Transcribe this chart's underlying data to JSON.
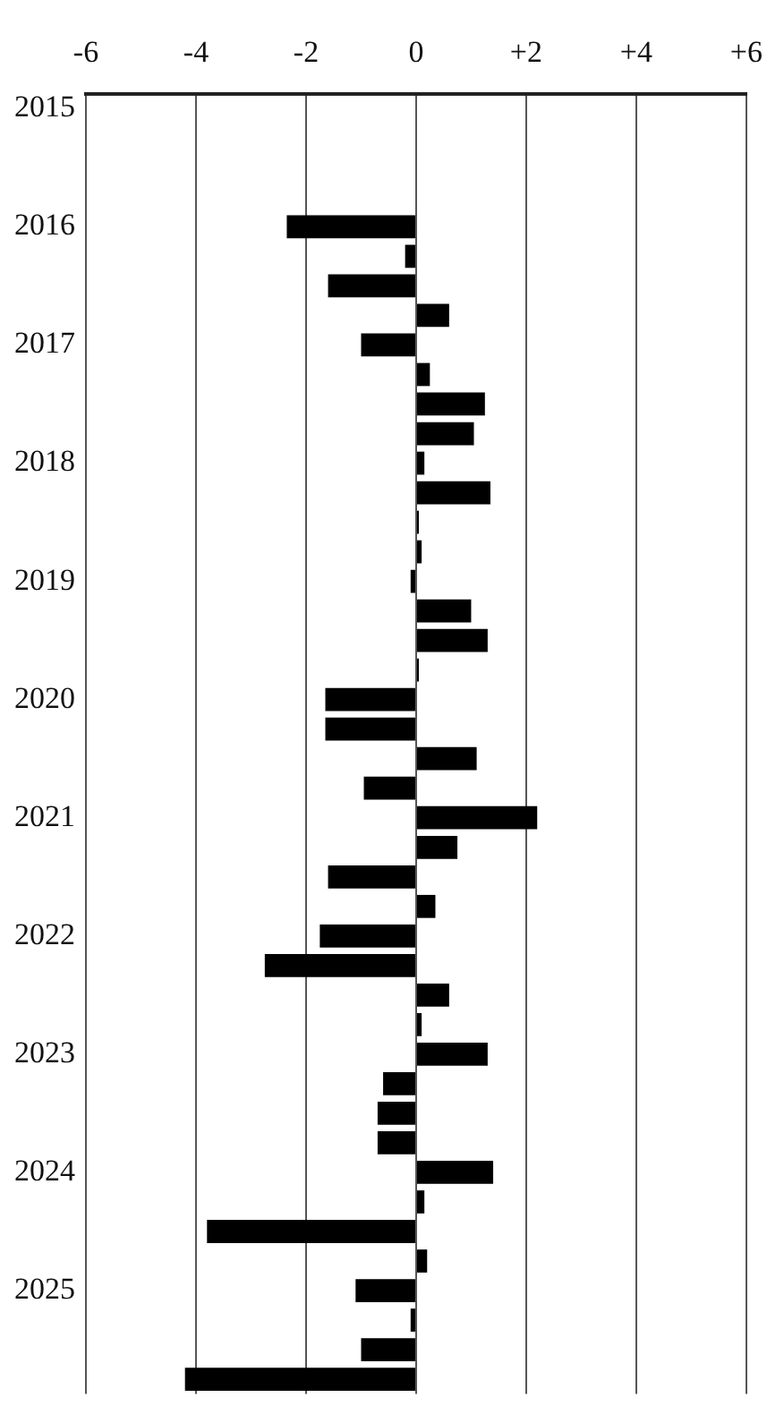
{
  "chart_data": {
    "type": "bar",
    "orientation": "horizontal",
    "categories": [
      "2015",
      null,
      null,
      null,
      "2016",
      null,
      null,
      null,
      "2017",
      null,
      null,
      null,
      "2018",
      null,
      null,
      null,
      "2019",
      null,
      null,
      null,
      "2020",
      null,
      null,
      null,
      "2021",
      null,
      null,
      null,
      "2022",
      null,
      null,
      null,
      "2023",
      null,
      null,
      null,
      "2024",
      null,
      null,
      null,
      "2025",
      null,
      null,
      null
    ],
    "series": [
      {
        "color": "#000000",
        "values": [
          null,
          null,
          null,
          null,
          -2.35,
          -0.2,
          -1.6,
          0.6,
          -1.0,
          0.25,
          1.25,
          1.05,
          0.15,
          1.35,
          0.05,
          0.1,
          -0.1,
          1.0,
          1.3,
          0.05,
          -1.65,
          -1.65,
          1.1,
          -0.95,
          2.2,
          0.75,
          -1.6,
          0.35,
          -1.75,
          -2.75,
          0.6,
          0.1,
          1.3,
          -0.6,
          -0.7,
          -0.7,
          1.4,
          0.15,
          -3.8,
          0.2,
          -1.1,
          -0.1,
          -1.0,
          -4.2
        ]
      }
    ],
    "xlim": [
      -6,
      6
    ],
    "xticks": [
      -6,
      -4,
      -2,
      0,
      {
        "value": 2,
        "label": "+2"
      },
      {
        "value": 4,
        "label": "+4"
      },
      {
        "value": 6,
        "label": "+6"
      }
    ],
    "grid": "x",
    "legend": false
  }
}
